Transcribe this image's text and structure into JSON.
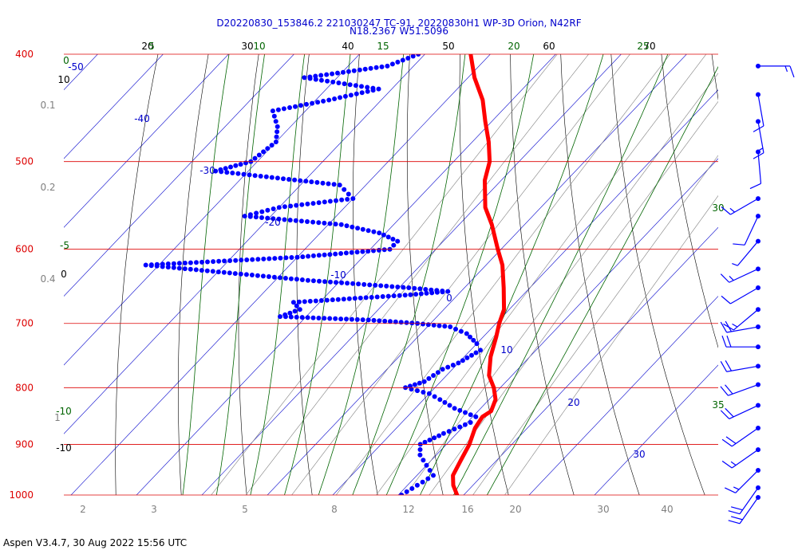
{
  "header": {
    "title_line1": "D20220830_153846.2 221030247 TC-91, 20220830H1 WP-3D Orion, N42RF",
    "title_line2": "N18.2367 W51.5096"
  },
  "footer": {
    "text": "Aspen V3.4.7, 30 Aug 2022  15:56 UTC"
  },
  "colors": {
    "isobar": "#dd0000",
    "isotherm": "#0000cc",
    "dry_adiabat": "#000000",
    "moist_adiabat": "#006400",
    "mixing_ratio": "#808080",
    "temperature": "#ff0000",
    "dewpoint": "#0000ff"
  },
  "chart_data": {
    "type": "skew-t",
    "pressure_levels": [
      {
        "p": 400,
        "label": "400"
      },
      {
        "p": 500,
        "label": "500"
      },
      {
        "p": 600,
        "label": "600"
      },
      {
        "p": 700,
        "label": "700"
      },
      {
        "p": 800,
        "label": "800"
      },
      {
        "p": 900,
        "label": "900"
      },
      {
        "p": 1000,
        "label": "1000"
      }
    ],
    "isotherm_labels": [
      {
        "t": -50,
        "label": "-50"
      },
      {
        "t": -40,
        "label": "-40"
      },
      {
        "t": -30,
        "label": "-30"
      },
      {
        "t": -20,
        "label": "-20"
      },
      {
        "t": -10,
        "label": "-10"
      },
      {
        "t": 0,
        "label": "0"
      },
      {
        "t": 10,
        "label": "10"
      },
      {
        "t": 20,
        "label": "20"
      },
      {
        "t": 30,
        "label": "30"
      }
    ],
    "dry_adiabat_top_labels": [
      "20",
      "30",
      "40",
      "50",
      "60",
      "70"
    ],
    "moist_adiabat_labels": [
      "0",
      "5",
      "10",
      "15",
      "20",
      "25",
      "30",
      "35",
      "-5",
      "-10"
    ],
    "mixing_ratio_labels": [
      "2",
      "3",
      "5",
      "8",
      "12",
      "16",
      "20",
      "30",
      "40"
    ],
    "height_labels": [
      "10",
      "0.1",
      "0.2",
      "0.4",
      "0",
      "1",
      "-10"
    ],
    "temperature": [
      {
        "p": 1000,
        "t": 29.0
      },
      {
        "p": 980,
        "t": 27.0
      },
      {
        "p": 960,
        "t": 25.5
      },
      {
        "p": 930,
        "t": 24.5
      },
      {
        "p": 900,
        "t": 23.5
      },
      {
        "p": 870,
        "t": 22.0
      },
      {
        "p": 850,
        "t": 21.5
      },
      {
        "p": 840,
        "t": 22.0
      },
      {
        "p": 820,
        "t": 21.0
      },
      {
        "p": 800,
        "t": 19.0
      },
      {
        "p": 780,
        "t": 16.5
      },
      {
        "p": 750,
        "t": 14.0
      },
      {
        "p": 720,
        "t": 12.0
      },
      {
        "p": 700,
        "t": 10.5
      },
      {
        "p": 680,
        "t": 9.2
      },
      {
        "p": 650,
        "t": 6.0
      },
      {
        "p": 620,
        "t": 2.5
      },
      {
        "p": 600,
        "t": -0.5
      },
      {
        "p": 570,
        "t": -5.0
      },
      {
        "p": 550,
        "t": -8.5
      },
      {
        "p": 520,
        "t": -12.5
      },
      {
        "p": 500,
        "t": -14.5
      },
      {
        "p": 480,
        "t": -17.5
      },
      {
        "p": 460,
        "t": -21.0
      },
      {
        "p": 440,
        "t": -24.5
      },
      {
        "p": 420,
        "t": -29.0
      },
      {
        "p": 400,
        "t": -33.0
      }
    ],
    "dewpoint": [
      {
        "p": 1000,
        "t": 20.5
      },
      {
        "p": 980,
        "t": 21.5
      },
      {
        "p": 960,
        "t": 22.5
      },
      {
        "p": 940,
        "t": 20.0
      },
      {
        "p": 920,
        "t": 17.5
      },
      {
        "p": 900,
        "t": 16.0
      },
      {
        "p": 880,
        "t": 18.0
      },
      {
        "p": 860,
        "t": 20.5
      },
      {
        "p": 850,
        "t": 20.5
      },
      {
        "p": 835,
        "t": 16.0
      },
      {
        "p": 820,
        "t": 12.5
      },
      {
        "p": 810,
        "t": 10.0
      },
      {
        "p": 800,
        "t": 5.5
      },
      {
        "p": 790,
        "t": 7.5
      },
      {
        "p": 780,
        "t": 8.0
      },
      {
        "p": 770,
        "t": 8.5
      },
      {
        "p": 760,
        "t": 10.0
      },
      {
        "p": 740,
        "t": 11.5
      },
      {
        "p": 730,
        "t": 10.0
      },
      {
        "p": 715,
        "t": 7.0
      },
      {
        "p": 705,
        "t": 3.5
      },
      {
        "p": 700,
        "t": -2.0
      },
      {
        "p": 695,
        "t": -10.0
      },
      {
        "p": 690,
        "t": -24.0
      },
      {
        "p": 680,
        "t": -22.0
      },
      {
        "p": 670,
        "t": -24.0
      },
      {
        "p": 660,
        "t": -8.0
      },
      {
        "p": 655,
        "t": -2.0
      },
      {
        "p": 650,
        "t": -8.5
      },
      {
        "p": 640,
        "t": -25.0
      },
      {
        "p": 620,
        "t": -52.0
      },
      {
        "p": 610,
        "t": -30.0
      },
      {
        "p": 600,
        "t": -17.0
      },
      {
        "p": 590,
        "t": -17.0
      },
      {
        "p": 580,
        "t": -21.0
      },
      {
        "p": 570,
        "t": -28.0
      },
      {
        "p": 560,
        "t": -44.0
      },
      {
        "p": 550,
        "t": -40.0
      },
      {
        "p": 540,
        "t": -30.0
      },
      {
        "p": 525,
        "t": -34.0
      },
      {
        "p": 510,
        "t": -55.0
      },
      {
        "p": 500,
        "t": -51.0
      },
      {
        "p": 480,
        "t": -50.0
      },
      {
        "p": 465,
        "t": -52.0
      },
      {
        "p": 450,
        "t": -55.0
      },
      {
        "p": 440,
        "t": -48.0
      },
      {
        "p": 430,
        "t": -42.0
      },
      {
        "p": 420,
        "t": -55.0
      },
      {
        "p": 410,
        "t": -44.0
      },
      {
        "p": 400,
        "t": -41.0
      }
    ],
    "wind_barbs": [
      {
        "p": 410,
        "dir": 90,
        "spd": 15
      },
      {
        "p": 435,
        "dir": 170,
        "spd": 10
      },
      {
        "p": 460,
        "dir": 170,
        "spd": 15
      },
      {
        "p": 490,
        "dir": 175,
        "spd": 10
      },
      {
        "p": 540,
        "dir": 240,
        "spd": 15
      },
      {
        "p": 560,
        "dir": 205,
        "spd": 10
      },
      {
        "p": 590,
        "dir": 220,
        "spd": 5
      },
      {
        "p": 625,
        "dir": 245,
        "spd": 15
      },
      {
        "p": 650,
        "dir": 240,
        "spd": 10
      },
      {
        "p": 680,
        "dir": 230,
        "spd": 15
      },
      {
        "p": 705,
        "dir": 260,
        "spd": 20
      },
      {
        "p": 735,
        "dir": 270,
        "spd": 20
      },
      {
        "p": 765,
        "dir": 260,
        "spd": 20
      },
      {
        "p": 795,
        "dir": 250,
        "spd": 20
      },
      {
        "p": 830,
        "dir": 245,
        "spd": 20
      },
      {
        "p": 870,
        "dir": 235,
        "spd": 20
      },
      {
        "p": 910,
        "dir": 235,
        "spd": 15
      },
      {
        "p": 950,
        "dir": 225,
        "spd": 15
      },
      {
        "p": 985,
        "dir": 215,
        "spd": 20
      },
      {
        "p": 1005,
        "dir": 215,
        "spd": 20
      }
    ]
  }
}
